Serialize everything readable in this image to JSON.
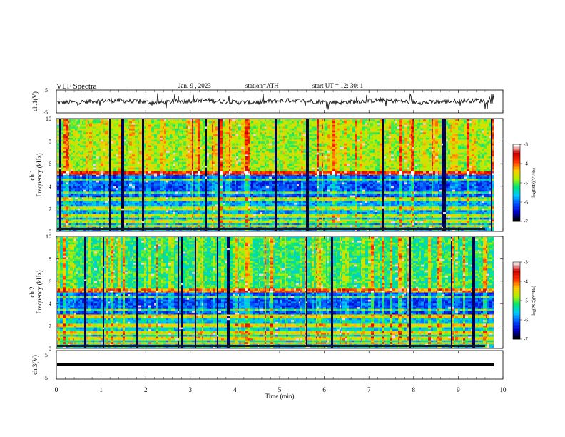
{
  "header": {
    "title": "VLF  Spectra",
    "date": "Jan. 9  , 2023",
    "station": "station=ATH",
    "start": "start  UT  =   12: 30: 1"
  },
  "chart_data": [
    {
      "type": "line",
      "ylabel": "ch.1(V)",
      "ylim": [
        -5,
        5
      ],
      "ytick_labels": [
        "5",
        "-5"
      ],
      "xlim": [
        0,
        10
      ],
      "description_series": "black waveform hovering near 0 V with short spikes",
      "color": "#000000"
    },
    {
      "type": "heatmap",
      "ylabel": "ch.1\nFrequency (kHz)",
      "ylabel_lines": [
        "ch.1",
        "Frequency  (kHz)"
      ],
      "ylim": [
        0,
        10
      ],
      "ytick_labels": [
        "0",
        "2",
        "4",
        "6",
        "8",
        "10"
      ],
      "xlim": [
        0,
        9.8
      ],
      "colorbar": {
        "label": "log(PSD)(V²/Hz)",
        "range": [
          -7,
          -3
        ],
        "tick_labels": [
          "-3",
          "-4",
          "-5",
          "-6",
          "-7"
        ]
      }
    },
    {
      "type": "heatmap",
      "ylabel": "ch.2\nFrequency (kHz)",
      "ylabel_lines": [
        "ch.2",
        "Frequency  (kHz)"
      ],
      "ylim": [
        0,
        10
      ],
      "ytick_labels": [
        "0",
        "2",
        "4",
        "6",
        "8",
        "10"
      ],
      "xlim": [
        0,
        9.8
      ],
      "colorbar": {
        "label": "log(PSD)(V²/Hz)",
        "range": [
          -7,
          -3
        ],
        "tick_labels": [
          "-3",
          "-4",
          "-5",
          "-6",
          "-7"
        ]
      }
    },
    {
      "type": "line",
      "ylabel": "ch.3(V)",
      "ylim": [
        -5,
        5
      ],
      "ytick_labels": [
        "5",
        "-5"
      ],
      "xlim": [
        0,
        10
      ],
      "x_ticks": [
        0,
        1,
        2,
        3,
        4,
        5,
        6,
        7,
        8,
        9,
        10
      ],
      "x_tick_labels": [
        "0",
        "1",
        "2",
        "3",
        "4",
        "5",
        "6",
        "7",
        "8",
        "9",
        "10"
      ],
      "xlabel": "Time  (min)",
      "color": "#000000"
    }
  ],
  "colors": {
    "colormap": [
      "#000000",
      "#0000c8",
      "#0050ff",
      "#00c8ff",
      "#00e678",
      "#b4f000",
      "#ffc800",
      "#ff3200",
      "#c80000",
      "#ffffff"
    ]
  }
}
